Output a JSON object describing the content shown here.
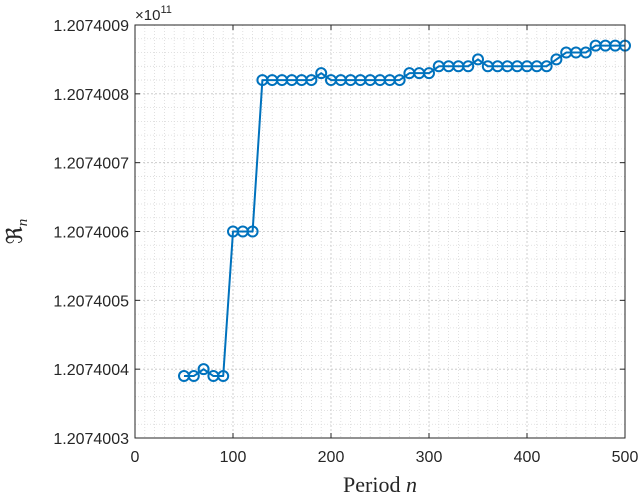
{
  "chart_data": {
    "type": "line",
    "xlabel": "Period",
    "xlabel_var": "n",
    "ylabel": "ℜ",
    "ylabel_sub": "n",
    "exponent_base": "×10",
    "exponent_power": "11",
    "xlim": [
      0,
      500
    ],
    "ylim": [
      1.2074003,
      1.2074009
    ],
    "xticks": [
      0,
      100,
      200,
      300,
      400,
      500
    ],
    "xtick_labels": [
      "0",
      "100",
      "200",
      "300",
      "400",
      "500"
    ],
    "yticks": [
      1.2074003,
      1.2074004,
      1.2074005,
      1.2074006,
      1.2074007,
      1.2074008,
      1.2074009
    ],
    "ytick_labels": [
      "1.2074003",
      "1.2074004",
      "1.2074005",
      "1.2074006",
      "1.2074007",
      "1.2074008",
      "1.2074009"
    ],
    "grid": true,
    "minor_grid": true,
    "marker": "circle",
    "color": "#0072BD",
    "series": [
      {
        "x": [
          50,
          60,
          70,
          80,
          90,
          100,
          110,
          120,
          130,
          140,
          150,
          160,
          170,
          180,
          190,
          200,
          210,
          220,
          230,
          240,
          250,
          260,
          270,
          280,
          290,
          300,
          310,
          320,
          330,
          340,
          350,
          360,
          370,
          380,
          390,
          400,
          410,
          420,
          430,
          440,
          450,
          460,
          470,
          480,
          490,
          500
        ],
        "values": [
          1.20740039,
          1.20740039,
          1.2074004,
          1.20740039,
          1.20740039,
          1.2074006,
          1.2074006,
          1.2074006,
          1.20740082,
          1.20740082,
          1.20740082,
          1.20740082,
          1.20740082,
          1.20740082,
          1.20740083,
          1.20740082,
          1.20740082,
          1.20740082,
          1.20740082,
          1.20740082,
          1.20740082,
          1.20740082,
          1.20740082,
          1.20740083,
          1.20740083,
          1.20740083,
          1.20740084,
          1.20740084,
          1.20740084,
          1.20740084,
          1.20740085,
          1.20740084,
          1.20740084,
          1.20740084,
          1.20740084,
          1.20740084,
          1.20740084,
          1.20740084,
          1.20740085,
          1.20740086,
          1.20740086,
          1.20740086,
          1.20740087,
          1.20740087,
          1.20740087,
          1.20740087
        ]
      }
    ]
  }
}
